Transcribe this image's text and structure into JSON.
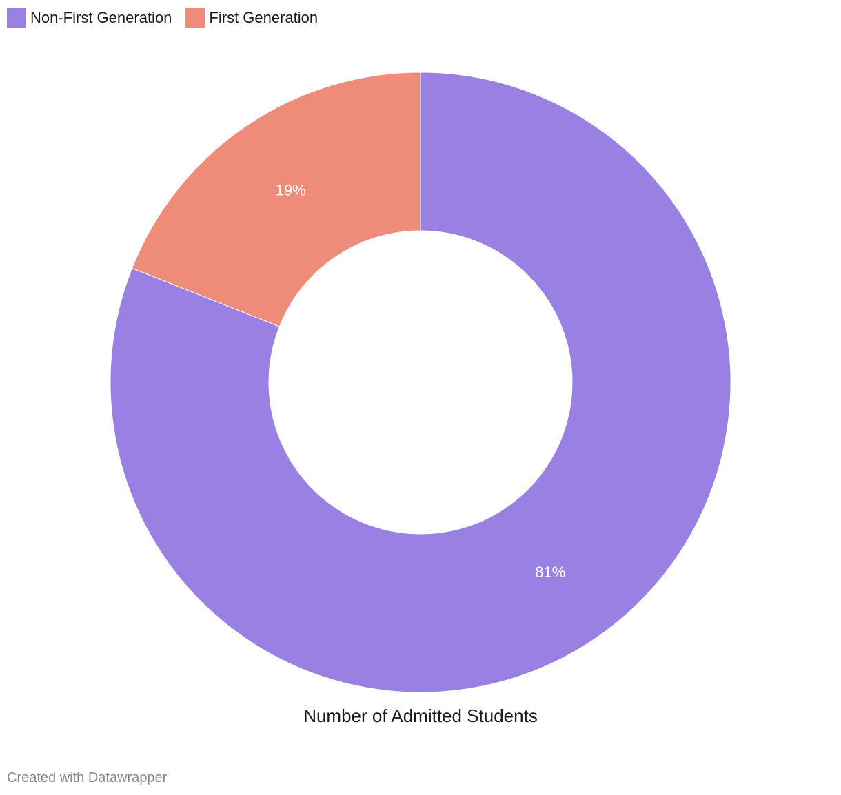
{
  "chart_data": {
    "type": "pie",
    "variant": "donut",
    "categories": [
      "Non-First Generation",
      "First Generation"
    ],
    "values": [
      81,
      19
    ],
    "value_labels": [
      "81%",
      "19%"
    ],
    "colors": [
      "#9881e2",
      "#ee8b79"
    ],
    "caption": "Number of Admitted Students",
    "legend_position": "top-left"
  },
  "legend": {
    "items": [
      {
        "label": "Non-First Generation",
        "color": "#9881e2"
      },
      {
        "label": "First Generation",
        "color": "#ee8b79"
      }
    ]
  },
  "footer": {
    "credit": "Created with Datawrapper"
  }
}
